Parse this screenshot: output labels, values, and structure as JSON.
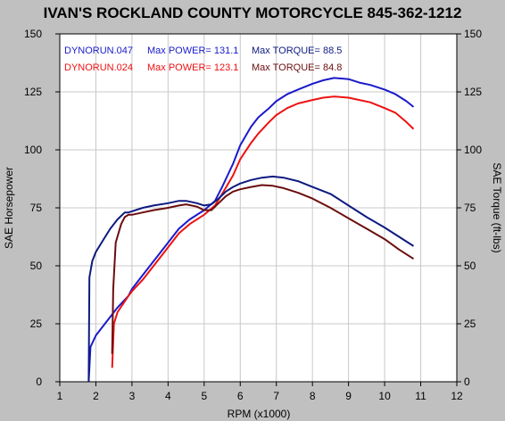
{
  "colors": {
    "background": "#c0c0c0",
    "plot_bg": "#ffffff",
    "grid": "#c8c8c8",
    "axis": "#000000",
    "run1": "#1a1acc",
    "run2": "#ee1111",
    "run1_torque": "#0d1a80",
    "run2_torque": "#6b0d0d"
  },
  "chart_data": {
    "type": "line",
    "title": "IVAN'S ROCKLAND COUNTY MOTORCYCLE 845-362-1212",
    "xlabel": "RPM (x1000)",
    "ylabel_left": "SAE Horsepower",
    "ylabel_right": "SAE Torque (ft-lbs)",
    "xlim": [
      1,
      12
    ],
    "ylim": [
      0,
      150
    ],
    "x_ticks": [
      "1",
      "2",
      "3",
      "4",
      "5",
      "6",
      "7",
      "8",
      "9",
      "10",
      "11",
      "12"
    ],
    "y_ticks": [
      "0",
      "25",
      "50",
      "75",
      "100",
      "125",
      "150"
    ],
    "grid": true,
    "legend": [
      {
        "run": "DYNORUN.047",
        "power_label": "Max POWER=",
        "power": "131.1",
        "torque_label": "Max TORQUE=",
        "torque": "88.5"
      },
      {
        "run": "DYNORUN.024",
        "power_label": "Max POWER=",
        "power": "123.1",
        "torque_label": "Max TORQUE=",
        "torque": "84.8"
      }
    ],
    "series": [
      {
        "name": "DYNORUN.047",
        "kind": "horsepower",
        "x": [
          1.8,
          1.85,
          2.0,
          2.3,
          2.6,
          2.9,
          3.0,
          3.3,
          3.6,
          4.0,
          4.3,
          4.6,
          5.0,
          5.3,
          5.5,
          5.8,
          6.0,
          6.3,
          6.5,
          6.8,
          7.0,
          7.3,
          7.6,
          8.0,
          8.3,
          8.6,
          9.0,
          9.3,
          9.6,
          10.0,
          10.3,
          10.6,
          10.8
        ],
        "y": [
          0,
          15,
          20,
          26,
          32,
          37,
          40,
          46,
          52,
          60,
          66,
          70,
          74,
          78,
          84,
          94,
          102,
          110,
          114,
          118,
          121,
          124,
          126,
          128.5,
          130,
          131,
          130.5,
          129,
          128,
          126,
          124,
          121,
          118.5
        ]
      },
      {
        "name": "DYNORUN.024",
        "kind": "horsepower",
        "x": [
          2.45,
          2.5,
          2.6,
          2.9,
          3.0,
          3.3,
          3.6,
          4.0,
          4.3,
          4.6,
          5.0,
          5.3,
          5.5,
          5.8,
          6.0,
          6.3,
          6.5,
          6.8,
          7.0,
          7.3,
          7.6,
          8.0,
          8.3,
          8.6,
          9.0,
          9.3,
          9.6,
          10.0,
          10.3,
          10.6,
          10.8
        ],
        "y": [
          6,
          25,
          30,
          37,
          39,
          44,
          50,
          58,
          64,
          68,
          72,
          76,
          81,
          89,
          96,
          103,
          107,
          112,
          115,
          118,
          120,
          121.5,
          122.5,
          123,
          122.5,
          121.5,
          120.5,
          118,
          116,
          112,
          109
        ]
      },
      {
        "name": "DYNORUN.047",
        "kind": "torque",
        "x": [
          1.8,
          1.82,
          1.9,
          2.0,
          2.2,
          2.4,
          2.6,
          2.8,
          2.9,
          3.0,
          3.3,
          3.6,
          4.0,
          4.3,
          4.5,
          4.8,
          5.0,
          5.2,
          5.4,
          5.6,
          5.8,
          6.0,
          6.3,
          6.6,
          6.9,
          7.2,
          7.6,
          8.0,
          8.5,
          9.0,
          9.5,
          10.0,
          10.4,
          10.8
        ],
        "y": [
          0,
          45,
          52,
          56,
          61,
          66,
          70,
          73,
          73,
          73.5,
          75,
          76,
          77,
          78,
          78,
          77,
          76,
          76.5,
          79,
          82,
          84,
          85.5,
          87,
          88,
          88.5,
          88,
          86.5,
          84,
          81,
          76,
          71,
          66.5,
          62.5,
          58.5
        ]
      },
      {
        "name": "DYNORUN.024",
        "kind": "torque",
        "x": [
          2.45,
          2.48,
          2.55,
          2.7,
          2.8,
          2.9,
          3.0,
          3.3,
          3.6,
          4.0,
          4.3,
          4.5,
          4.8,
          5.0,
          5.2,
          5.4,
          5.6,
          5.8,
          6.0,
          6.3,
          6.6,
          6.9,
          7.2,
          7.6,
          8.0,
          8.5,
          9.0,
          9.5,
          10.0,
          10.4,
          10.8
        ],
        "y": [
          12,
          40,
          60,
          68,
          71,
          72,
          72,
          73,
          74,
          75,
          76,
          76.5,
          75.5,
          74,
          74,
          77,
          80,
          82,
          83,
          84,
          84.8,
          84.5,
          83.5,
          81.5,
          79,
          75,
          70.5,
          66,
          61.5,
          57,
          53
        ]
      }
    ]
  }
}
